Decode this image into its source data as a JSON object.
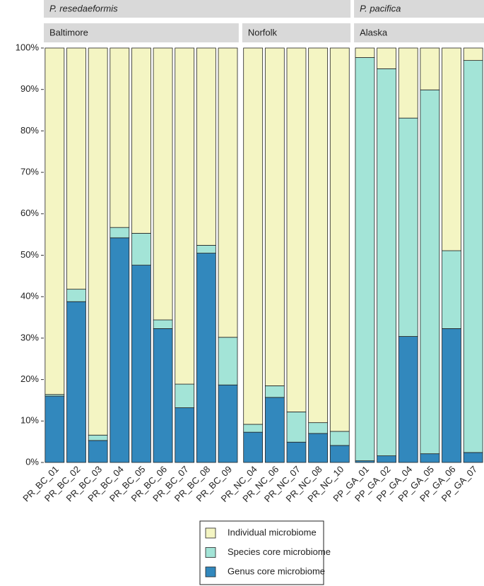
{
  "chart_data": {
    "type": "bar",
    "stacked": true,
    "ylim": [
      0,
      100
    ],
    "yticks": [
      {
        "value": 0,
        "label": "0%"
      },
      {
        "value": 10,
        "label": "10%"
      },
      {
        "value": 20,
        "label": "20%"
      },
      {
        "value": 30,
        "label": "30%"
      },
      {
        "value": 40,
        "label": "40%"
      },
      {
        "value": 50,
        "label": "50%"
      },
      {
        "value": 60,
        "label": "60%"
      },
      {
        "value": 70,
        "label": "70%"
      },
      {
        "value": 80,
        "label": "80%"
      },
      {
        "value": 90,
        "label": "90%"
      },
      {
        "value": 100,
        "label": "100%"
      }
    ],
    "legend_position": "bottom",
    "facets": [
      {
        "label": "P. resedaeformis",
        "panels": [
          {
            "label": "Baltimore",
            "categories": [
              "PR_BC_01",
              "PR_BC_02",
              "PR_BC_03",
              "PR_BC_04",
              "PR_BC_05",
              "PR_BC_06",
              "PR_BC_07",
              "PR_BC_08",
              "PR_BC_09"
            ]
          },
          {
            "label": "Norfolk",
            "categories": [
              "PR_NC_04",
              "PR_NC_06",
              "PR_NC_07",
              "PR_NC_08",
              "PR_NC_10"
            ]
          }
        ]
      },
      {
        "label": "P. pacifica",
        "panels": [
          {
            "label": "Alaska",
            "categories": [
              "PP_GA_01",
              "PP_GA_02",
              "PP_GA_04",
              "PP_GA_05",
              "PP_GA_06",
              "PP_GA_07"
            ]
          }
        ]
      }
    ],
    "series": [
      {
        "name": "Genus core microbiome",
        "color": "#3288bd",
        "values": [
          [
            16.0,
            38.8,
            5.3,
            54.2,
            47.6,
            32.3,
            13.2,
            50.5,
            18.7
          ],
          [
            7.3,
            15.7,
            4.9,
            7.0,
            4.1
          ],
          [
            0.4,
            1.6,
            30.4,
            2.1,
            32.3,
            2.4
          ]
        ]
      },
      {
        "name": "Species core microbiome",
        "color": "#a3e4d7",
        "values": [
          [
            0.4,
            3.0,
            1.3,
            2.5,
            7.7,
            2.1,
            5.7,
            1.9,
            11.5
          ],
          [
            1.9,
            2.8,
            7.3,
            2.6,
            3.4
          ],
          [
            97.3,
            93.4,
            52.7,
            87.8,
            18.8,
            94.6
          ]
        ]
      },
      {
        "name": "Individual microbiome",
        "color": "#f4f5c3",
        "values": [
          [
            83.6,
            58.2,
            93.4,
            43.3,
            44.7,
            65.6,
            81.1,
            47.6,
            69.8
          ],
          [
            90.8,
            81.5,
            87.8,
            90.4,
            92.5
          ],
          [
            2.3,
            5.0,
            16.9,
            10.1,
            48.9,
            3.0
          ]
        ]
      }
    ]
  }
}
